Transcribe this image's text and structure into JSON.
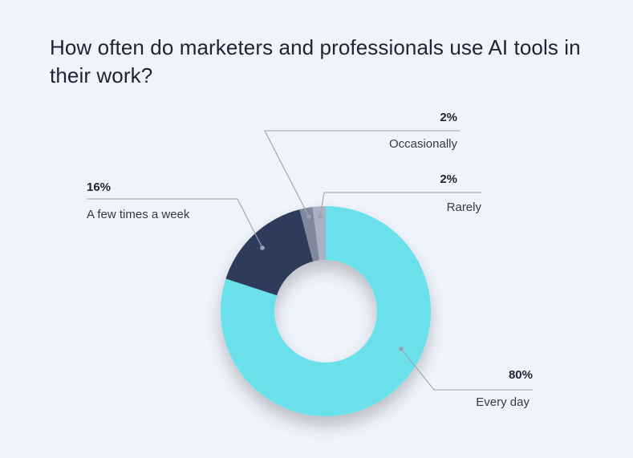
{
  "title": "How often do marketers and professionals use AI tools in their work?",
  "chart_data": {
    "type": "pie",
    "style": "donut",
    "title": "How often do marketers and professionals use AI tools in their work?",
    "slices": [
      {
        "label": "Every day",
        "value": 80,
        "display": "80%",
        "color": "#69e0ea"
      },
      {
        "label": "A few times a week",
        "value": 16,
        "display": "16%",
        "color": "#2e3a5a"
      },
      {
        "label": "Occasionally",
        "value": 2,
        "display": "2%",
        "color": "#7f889d"
      },
      {
        "label": "Rarely",
        "value": 2,
        "display": "2%",
        "color": "#a9b2c5"
      }
    ],
    "legend": "none (callout labels)"
  }
}
